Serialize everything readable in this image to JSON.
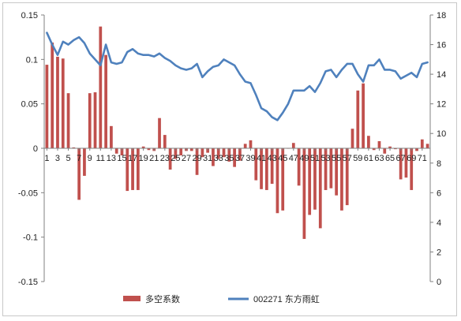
{
  "chart_data": {
    "type": "bar+line",
    "title": "",
    "xlabel": "",
    "ylabel_left": "",
    "ylabel_right": "",
    "grid": false,
    "legend_position": "bottom",
    "x_tick_labels": [
      "1",
      "3",
      "5",
      "7",
      "9",
      "11",
      "13",
      "15",
      "17",
      "19",
      "21",
      "23",
      "25",
      "27",
      "29",
      "31",
      "33",
      "35",
      "37",
      "39",
      "41",
      "43",
      "45",
      "47",
      "49",
      "51",
      "53",
      "55",
      "57",
      "59",
      "61",
      "63",
      "65",
      "67",
      "69",
      "71"
    ],
    "y_left_ticks": [
      "0.15",
      "0.1",
      "0.05",
      "0",
      "-0.05",
      "-0.1",
      "-0.15"
    ],
    "y_right_ticks": [
      "18",
      "16",
      "14",
      "12",
      "10",
      "8",
      "6",
      "4",
      "2",
      "0"
    ],
    "ylim_left": [
      -0.15,
      0.15
    ],
    "ylim_right": [
      0,
      18
    ],
    "x": [
      1,
      2,
      3,
      4,
      5,
      6,
      7,
      8,
      9,
      10,
      11,
      12,
      13,
      14,
      15,
      16,
      17,
      18,
      19,
      20,
      21,
      22,
      23,
      24,
      25,
      26,
      27,
      28,
      29,
      30,
      31,
      32,
      33,
      34,
      35,
      36,
      37,
      38,
      39,
      40,
      41,
      42,
      43,
      44,
      45,
      46,
      47,
      48,
      49,
      50,
      51,
      52,
      53,
      54,
      55,
      56,
      57,
      58,
      59,
      60,
      61,
      62,
      63,
      64,
      65,
      66,
      67,
      68,
      69,
      70,
      71,
      72
    ],
    "series": [
      {
        "name": "多空系数",
        "axis": "left",
        "kind": "bar",
        "color": "#c0504d",
        "values": [
          0.094,
          0.119,
          0.103,
          0.101,
          0.062,
          0.001,
          -0.058,
          -0.031,
          0.062,
          0.063,
          0.137,
          0.105,
          0.025,
          -0.006,
          -0.008,
          -0.048,
          -0.047,
          -0.047,
          0.002,
          -0.002,
          -0.003,
          0.034,
          0.015,
          -0.024,
          -0.012,
          -0.008,
          -0.003,
          -0.003,
          -0.03,
          -0.01,
          -0.005,
          -0.02,
          -0.012,
          -0.01,
          -0.015,
          -0.021,
          -0.014,
          0.005,
          0.009,
          -0.036,
          -0.046,
          -0.047,
          -0.04,
          -0.073,
          -0.07,
          0.0,
          0.006,
          -0.042,
          -0.102,
          -0.075,
          -0.069,
          -0.09,
          -0.047,
          -0.045,
          -0.053,
          -0.07,
          -0.064,
          0.022,
          0.065,
          0.073,
          0.014,
          -0.002,
          0.008,
          -0.006,
          0.002,
          -0.001,
          -0.035,
          -0.033,
          -0.047,
          -0.003,
          0.01,
          0.005
        ]
      },
      {
        "name": "002271 东方雨虹",
        "axis": "right",
        "kind": "line",
        "color": "#4f81bd",
        "values": [
          16.8,
          16.0,
          15.3,
          16.2,
          16.0,
          16.3,
          16.5,
          16.1,
          15.4,
          15.0,
          14.6,
          16.0,
          14.8,
          14.7,
          14.8,
          15.5,
          15.7,
          15.4,
          15.3,
          15.3,
          15.2,
          15.4,
          15.1,
          14.9,
          14.6,
          14.4,
          14.3,
          14.4,
          14.7,
          13.8,
          14.2,
          14.5,
          14.6,
          15.0,
          14.8,
          14.6,
          14.0,
          13.5,
          13.4,
          12.6,
          11.7,
          11.5,
          11.1,
          10.9,
          11.4,
          12.0,
          12.9,
          12.9,
          12.9,
          13.2,
          12.8,
          13.4,
          14.2,
          14.3,
          13.8,
          14.3,
          14.7,
          14.7,
          14.0,
          13.5,
          14.6,
          14.6,
          15.0,
          14.3,
          14.3,
          14.2,
          13.7,
          13.9,
          14.1,
          13.8,
          14.7,
          14.8
        ]
      }
    ]
  },
  "legend": {
    "bar_label": "多空系数",
    "line_label": "002271 东方雨虹"
  },
  "colors": {
    "bar": "#c0504d",
    "line": "#4f81bd",
    "axis": "#808080"
  }
}
